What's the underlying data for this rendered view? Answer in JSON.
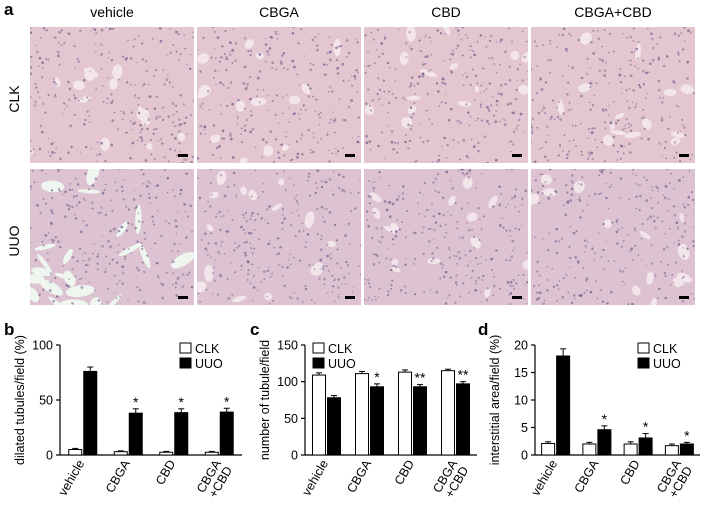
{
  "figure": {
    "panel_a": {
      "letter": "a",
      "columns": [
        "vehicle",
        "CBGA",
        "CBD",
        "CBGA+CBD"
      ],
      "rows": [
        "CLK",
        "UUO"
      ]
    }
  },
  "colors": {
    "clk_fill": "#ffffff",
    "uuo_fill": "#000000",
    "stain_base": "#e7c8cf",
    "stain_nuclei": "#6c5a8a"
  },
  "chart_data": [
    {
      "letter": "b",
      "type": "bar",
      "ylabel": "dilated tubules/field (%)",
      "ylim": [
        0,
        100
      ],
      "yticks": [
        0,
        50,
        100
      ],
      "categories": [
        "vehicle",
        "CBGA",
        "CBD",
        "CBGA\n+CBD"
      ],
      "series": [
        {
          "name": "CLK",
          "values": [
            5,
            3,
            2.5,
            2.5
          ],
          "errors": [
            1,
            0.8,
            0.8,
            0.8
          ]
        },
        {
          "name": "UUO",
          "values": [
            76,
            38,
            38.5,
            39
          ],
          "errors": [
            4,
            4,
            3.5,
            3.5
          ]
        }
      ],
      "stars": [
        "",
        "*",
        "*",
        "*"
      ],
      "legend": "top-right"
    },
    {
      "letter": "c",
      "type": "bar",
      "ylabel": "number of tubule/field",
      "ylim": [
        0,
        150
      ],
      "yticks": [
        0,
        50,
        100,
        150
      ],
      "categories": [
        "vehicle",
        "CBGA",
        "CBD",
        "CBGA\n+CBD"
      ],
      "series": [
        {
          "name": "CLK",
          "values": [
            109,
            111,
            113,
            115
          ],
          "errors": [
            3,
            3,
            3,
            2
          ]
        },
        {
          "name": "UUO",
          "values": [
            78,
            93,
            93,
            97
          ],
          "errors": [
            3,
            4,
            3,
            3
          ]
        }
      ],
      "stars": [
        "",
        "*",
        "**",
        "**"
      ],
      "legend": "top-left"
    },
    {
      "letter": "d",
      "type": "bar",
      "ylabel": "interstitial area/field (%)",
      "ylim": [
        0,
        20
      ],
      "yticks": [
        0,
        5,
        10,
        15,
        20
      ],
      "categories": [
        "vehicle",
        "CBGA",
        "CBD",
        "CBGA\n+CBD"
      ],
      "series": [
        {
          "name": "CLK",
          "values": [
            2.1,
            2.0,
            2.0,
            1.7
          ],
          "errors": [
            0.3,
            0.3,
            0.4,
            0.3
          ]
        },
        {
          "name": "UUO",
          "values": [
            18.0,
            4.6,
            3.1,
            2.0
          ],
          "errors": [
            1.3,
            0.7,
            0.8,
            0.3
          ]
        }
      ],
      "stars": [
        "",
        "*",
        "*",
        "*"
      ],
      "legend": "top-right"
    }
  ]
}
